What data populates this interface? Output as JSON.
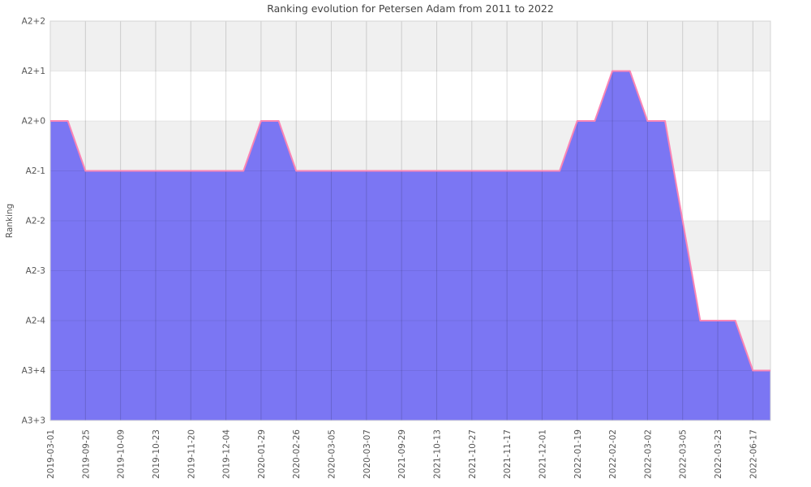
{
  "chart_data": {
    "type": "area",
    "title": "Ranking evolution for Petersen Adam from 2011 to 2022",
    "xlabel": "",
    "ylabel": "Ranking",
    "legend_position": "none",
    "grid": true,
    "y_categories_top_to_bottom": [
      "A2+2",
      "A2+1",
      "A2+0",
      "A2-1",
      "A2-2",
      "A2-3",
      "A2-4",
      "A3+4",
      "A3+3"
    ],
    "x_tick_labels": [
      "2019-03-01",
      "2019-09-25",
      "2019-10-09",
      "2019-10-23",
      "2019-11-20",
      "2019-12-04",
      "2020-01-29",
      "2020-02-26",
      "2020-03-05",
      "2020-03-07",
      "2021-09-29",
      "2021-10-13",
      "2021-10-27",
      "2021-11-17",
      "2021-12-01",
      "2022-01-19",
      "2022-02-02",
      "2022-03-02",
      "2022-03-05",
      "2022-03-23",
      "2022-06-17"
    ],
    "tick_every_n_points": 2,
    "points_rank": [
      "A2+0",
      "A2+0",
      "A2-1",
      "A2-1",
      "A2-1",
      "A2-1",
      "A2-1",
      "A2-1",
      "A2-1",
      "A2-1",
      "A2-1",
      "A2-1",
      "A2+0",
      "A2+0",
      "A2-1",
      "A2-1",
      "A2-1",
      "A2-1",
      "A2-1",
      "A2-1",
      "A2-1",
      "A2-1",
      "A2-1",
      "A2-1",
      "A2-1",
      "A2-1",
      "A2-1",
      "A2-1",
      "A2-1",
      "A2-1",
      "A2+0",
      "A2+0",
      "A2+1",
      "A2+1",
      "A2+0",
      "A2+0",
      "A2-2",
      "A2-4",
      "A2-4",
      "A2-4",
      "A3+4",
      "A3+4"
    ],
    "colors": {
      "area_fill": "#7b76f3",
      "area_line": "#fa85b5",
      "band_gray": "#f0f0f0",
      "band_white": "#ffffff",
      "grid_vertical": "rgba(0,0,0,0.15)",
      "grid_horizontal": "rgba(0,0,0,0.07)",
      "plot_border": "#d4d4d4",
      "tick_text": "#555555",
      "title_text": "#444444"
    }
  }
}
